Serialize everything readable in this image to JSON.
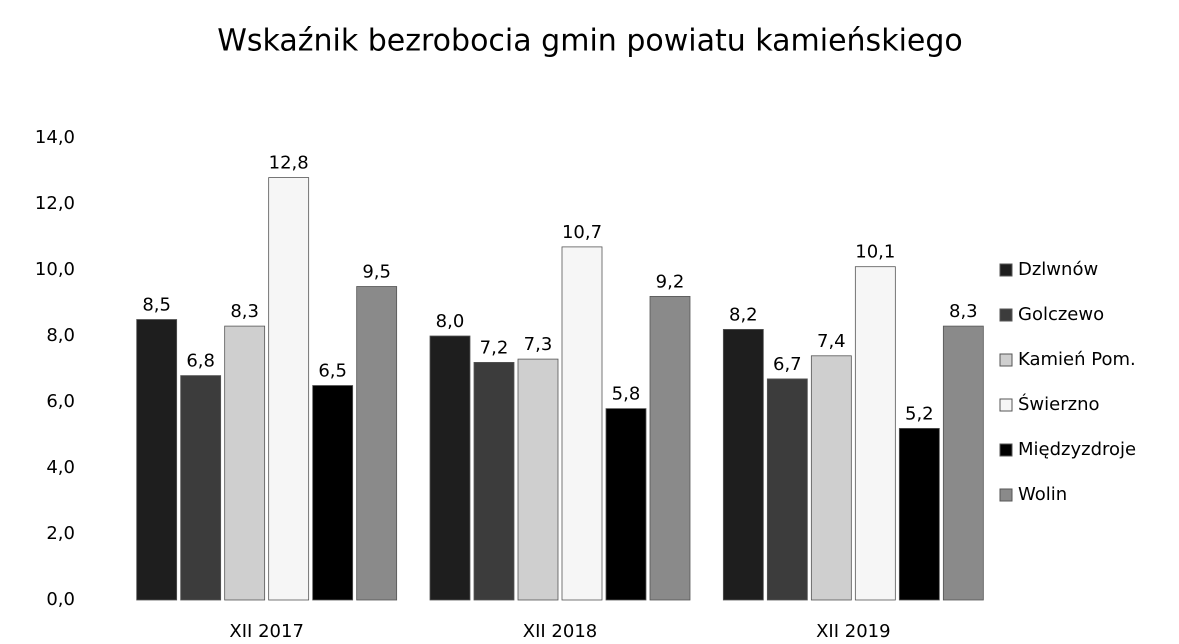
{
  "chart_data": {
    "type": "bar",
    "title": "Wskaźnik bezrobocia gmin powiatu kamieńskiego",
    "categories": [
      "XII 2017",
      "XII 2018",
      "XII 2019"
    ],
    "series": [
      {
        "name": "Dzlwnów",
        "color": "#1e1e1e",
        "values": [
          8.5,
          8.0,
          8.2
        ],
        "value_labels": [
          "8,5",
          "8,0",
          "8,2"
        ]
      },
      {
        "name": "Golczewo",
        "color": "#3c3c3c",
        "values": [
          6.8,
          7.2,
          6.7
        ],
        "value_labels": [
          "6,8",
          "7,2",
          "6,7"
        ]
      },
      {
        "name": "Kamień Pom.",
        "color": "#cfcfcf",
        "values": [
          8.3,
          7.3,
          7.4
        ],
        "value_labels": [
          "8,3",
          "7,3",
          "7,4"
        ]
      },
      {
        "name": "Świerzno",
        "color": "#f6f6f6",
        "values": [
          12.8,
          10.7,
          10.1
        ],
        "value_labels": [
          "12,8",
          "10,7",
          "10,1"
        ]
      },
      {
        "name": "Międzyzdroje",
        "color": "#000000",
        "values": [
          6.5,
          5.8,
          5.2
        ],
        "value_labels": [
          "6,5",
          "5,8",
          "5,2"
        ]
      },
      {
        "name": "Wolin",
        "color": "#8a8a8a",
        "values": [
          9.5,
          9.2,
          8.3
        ],
        "value_labels": [
          "9,5",
          "9,2",
          "8,3"
        ]
      }
    ],
    "ylim": [
      0,
      14
    ],
    "yticks": [
      {
        "value": 0,
        "label": "0,0"
      },
      {
        "value": 2,
        "label": "2,0"
      },
      {
        "value": 4,
        "label": "4,0"
      },
      {
        "value": 6,
        "label": "6,0"
      },
      {
        "value": 8,
        "label": "8,0"
      },
      {
        "value": 10,
        "label": "10,0"
      },
      {
        "value": 12,
        "label": "12,0"
      },
      {
        "value": 14,
        "label": "14,0"
      }
    ],
    "legend": "right"
  }
}
